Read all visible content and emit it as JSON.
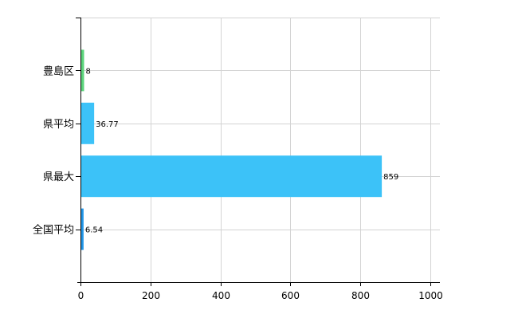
{
  "chart_data": {
    "type": "bar",
    "orientation": "horizontal",
    "categories": [
      "豊島区",
      "県平均",
      "県最大",
      "全国平均"
    ],
    "values": [
      8,
      36.77,
      859,
      6.54
    ],
    "data_labels": [
      "8",
      "36.77",
      "859",
      "6.54"
    ],
    "colors": [
      "#5cd47c",
      "#3cc2f8",
      "#3cc2f8",
      "#2196e8"
    ],
    "xlim": [
      0,
      1000
    ],
    "xticks": [
      0,
      200,
      400,
      600,
      800,
      1000
    ],
    "xtick_labels": [
      "0",
      "200",
      "400",
      "600",
      "800",
      "1000"
    ],
    "grid": true,
    "grid_color": "#d3d3d3"
  }
}
